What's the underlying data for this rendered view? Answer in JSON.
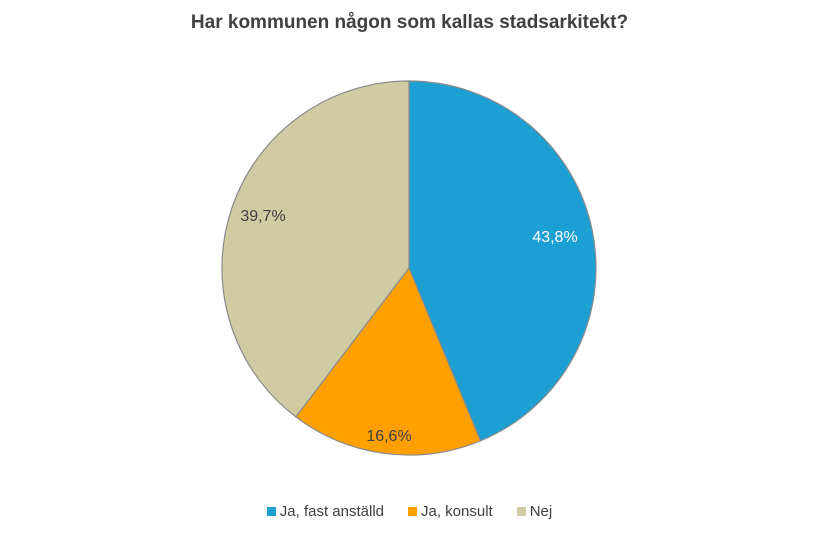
{
  "chart_data": {
    "type": "pie",
    "title": "Har kommunen någon som kallas stadsarkitekt?",
    "slices": [
      {
        "label": "Ja, fast anställd",
        "value": 43.8,
        "value_label": "43,8%",
        "color": "#1c9fd2",
        "label_color": "#ffffff"
      },
      {
        "label": "Ja, konsult",
        "value": 16.6,
        "value_label": "16,6%",
        "color": "#ffa000",
        "label_color": "#404040"
      },
      {
        "label": "Nej",
        "value": 39.7,
        "value_label": "39,7%",
        "color": "#cfcca3",
        "label_color": "#404040"
      }
    ],
    "legend_position": "bottom"
  }
}
